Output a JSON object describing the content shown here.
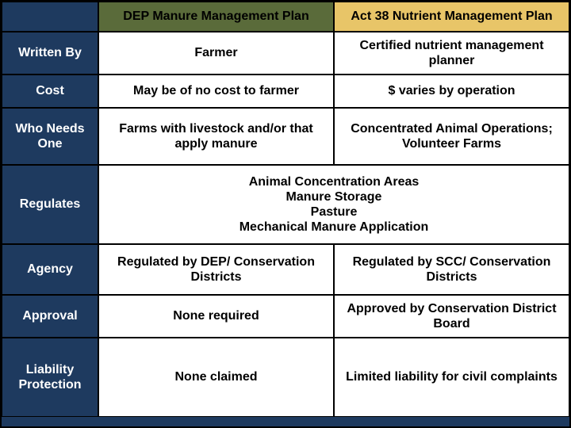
{
  "table": {
    "headers": {
      "col1": "",
      "col2": "DEP Manure Management Plan",
      "col3": "Act 38 Nutrient Management Plan"
    },
    "rows": [
      {
        "label": "Written By",
        "dep": "Farmer",
        "act": "Certified nutrient management planner"
      },
      {
        "label": "Cost",
        "dep": "May be of no cost to farmer",
        "act": "$  varies by operation"
      },
      {
        "label": "Who Needs One",
        "dep": "Farms with livestock and/or that apply manure",
        "act": "Concentrated Animal Operations; Volunteer Farms"
      },
      {
        "label": "Regulates",
        "merged": "Animal Concentration Areas\nManure Storage\nPasture\nMechanical Manure Application"
      },
      {
        "label": "Agency",
        "dep": "Regulated by DEP/ Conservation Districts",
        "act": "Regulated by SCC/ Conservation Districts"
      },
      {
        "label": "Approval",
        "dep": "None required",
        "act": "Approved by Conservation District Board"
      },
      {
        "label": "Liability Protection",
        "dep": "None claimed",
        "act": "Limited liability for civil complaints"
      }
    ],
    "colors": {
      "background": "#1e3a5f",
      "dep_header": "#5a6b3a",
      "act_header": "#e8c568",
      "row_label_bg": "#1e3a5f",
      "row_label_text": "#ffffff",
      "data_bg": "#ffffff",
      "data_text": "#000000",
      "border": "#000000"
    },
    "font": {
      "family": "Arial",
      "weight": "bold",
      "header_size": 16,
      "label_size": 16,
      "data_size": 16
    }
  }
}
